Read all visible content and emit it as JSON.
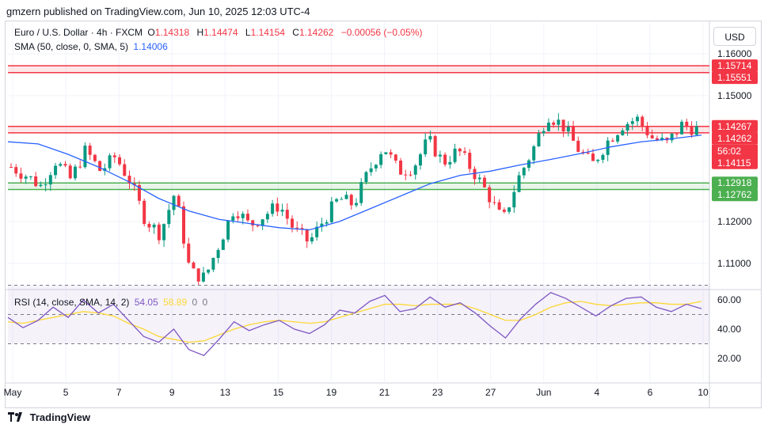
{
  "header": {
    "published": "gmzern published on TradingView.com, Jun 10, 2025 12:03 UTC-4"
  },
  "legend": {
    "symbol": "Euro / U.S. Dollar · 4h · FXCM",
    "open_label": "O",
    "open": "1.14318",
    "high_label": "H",
    "high": "1.14474",
    "low_label": "L",
    "low": "1.14154",
    "close_label": "C",
    "close": "1.14262",
    "change": "−0.00056 (−0.05%)",
    "sma_label": "SMA (50, close, 0, SMA, 5)",
    "sma_value": "1.14006"
  },
  "rsi_legend": {
    "label": "RSI (14, close, SMA, 14, 2)",
    "rsi": "54.05",
    "rsi_sma": "58.89",
    "v1": "0",
    "v2": "0"
  },
  "currency_button": "USD",
  "footer": {
    "brand": "TradingView"
  },
  "colors": {
    "up": "#089981",
    "down": "#f23645",
    "sma": "#2962ff",
    "rsi": "#7e57c2",
    "rsi_sma": "#fdd835",
    "support": "#4caf50",
    "resistance": "#f23645"
  },
  "chart_data": {
    "type": "candlestick",
    "timeframe": "4h",
    "price_axis": {
      "ticks": [
        "1.16000",
        "1.15000",
        "1.12000",
        "1.11000"
      ],
      "range": [
        1.1045,
        1.1615
      ]
    },
    "x_ticks": [
      "May",
      "5",
      "7",
      "9",
      "13",
      "15",
      "19",
      "21",
      "23",
      "27",
      "Jun",
      "4",
      "6",
      "10"
    ],
    "price_labels": [
      {
        "value": 1.15714,
        "text": "1.15714",
        "kind": "resistance"
      },
      {
        "value": 1.15551,
        "text": "1.15551",
        "kind": "resistance"
      },
      {
        "value": 1.14267,
        "text": "1.14267",
        "kind": "resistance"
      },
      {
        "value": 1.14262,
        "text": "1.14262",
        "kind": "last"
      },
      {
        "value": 1.14115,
        "text": "1.14115",
        "kind": "resistance"
      },
      {
        "value": 1.12918,
        "text": "1.12918",
        "kind": "support"
      },
      {
        "value": 1.12762,
        "text": "1.12762",
        "kind": "support"
      }
    ],
    "countdown": "56:02",
    "zones": [
      {
        "kind": "resistance",
        "from": 1.15551,
        "to": 1.15714
      },
      {
        "kind": "resistance",
        "from": 1.14115,
        "to": 1.14267
      },
      {
        "kind": "support",
        "from": 1.12762,
        "to": 1.12918
      }
    ],
    "close_path_approx": [
      1.133,
      1.131,
      1.1285,
      1.1345,
      1.13,
      1.137,
      1.132,
      1.1355,
      1.1295,
      1.1205,
      1.117,
      1.127,
      1.108,
      1.1065,
      1.115,
      1.1235,
      1.119,
      1.1215,
      1.124,
      1.118,
      1.115,
      1.1205,
      1.1255,
      1.124,
      1.132,
      1.138,
      1.132,
      1.133,
      1.1395,
      1.134,
      1.137,
      1.132,
      1.1265,
      1.12,
      1.13,
      1.137,
      1.1455,
      1.143,
      1.1375,
      1.1335,
      1.139,
      1.143,
      1.1445,
      1.14,
      1.1385,
      1.143,
      1.142
    ],
    "sma": {
      "label": "SMA 50",
      "approx": [
        1.139,
        1.1385,
        1.136,
        1.133,
        1.1295,
        1.1255,
        1.1225,
        1.1205,
        1.1195,
        1.1185,
        1.118,
        1.12,
        1.123,
        1.126,
        1.129,
        1.131,
        1.132,
        1.1335,
        1.1348,
        1.1362,
        1.1378,
        1.139,
        1.1397,
        1.1406
      ]
    },
    "rsi": {
      "label": "RSI 14",
      "axis_ticks": [
        60,
        40,
        20
      ],
      "bands": [
        30,
        50,
        70
      ],
      "approx": [
        48,
        41,
        46,
        55,
        48,
        60,
        51,
        57,
        46,
        35,
        31,
        40,
        26,
        22,
        33,
        45,
        39,
        43,
        46,
        40,
        37,
        43,
        53,
        51,
        59,
        63,
        52,
        54,
        62,
        55,
        58,
        51,
        42,
        34,
        47,
        57,
        65,
        61,
        55,
        49,
        56,
        61,
        62,
        55,
        52,
        57,
        54
      ],
      "sma_approx": [
        45,
        44,
        46,
        48,
        50,
        52,
        51,
        49,
        44,
        40,
        35,
        33,
        31,
        32,
        36,
        40,
        43,
        45,
        46,
        45,
        44,
        45,
        48,
        51,
        54,
        57,
        57,
        56,
        57,
        57,
        57,
        54,
        50,
        46,
        46,
        50,
        55,
        58,
        59,
        57,
        56,
        57,
        58,
        58,
        57,
        57,
        59
      ]
    }
  }
}
